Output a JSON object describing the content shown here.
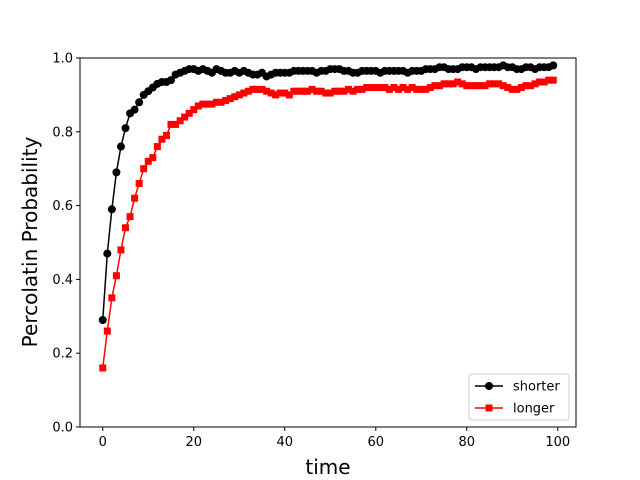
{
  "chart_data": {
    "type": "line",
    "xlabel": "time",
    "ylabel": "Percolatin Probability",
    "xlim": [
      -5,
      104
    ],
    "ylim": [
      0.0,
      1.0
    ],
    "xticks": [
      0,
      20,
      40,
      60,
      80,
      100
    ],
    "yticks": [
      0.0,
      0.2,
      0.4,
      0.6,
      0.8,
      1.0
    ],
    "xtick_labels": [
      "0",
      "20",
      "40",
      "60",
      "80",
      "100"
    ],
    "ytick_labels": [
      "0.0",
      "0.2",
      "0.4",
      "0.6",
      "0.8",
      "1.0"
    ],
    "grid": false,
    "legend_position": "lower-right",
    "series": [
      {
        "name": "shorter",
        "color": "#000000",
        "marker": "circle",
        "x": [
          0,
          1,
          2,
          3,
          4,
          5,
          6,
          7,
          8,
          9,
          10,
          11,
          12,
          13,
          14,
          15,
          16,
          17,
          18,
          19,
          20,
          21,
          22,
          23,
          24,
          25,
          26,
          27,
          28,
          29,
          30,
          31,
          32,
          33,
          34,
          35,
          36,
          37,
          38,
          39,
          40,
          41,
          42,
          43,
          44,
          45,
          46,
          47,
          48,
          49,
          50,
          51,
          52,
          53,
          54,
          55,
          56,
          57,
          58,
          59,
          60,
          61,
          62,
          63,
          64,
          65,
          66,
          67,
          68,
          69,
          70,
          71,
          72,
          73,
          74,
          75,
          76,
          77,
          78,
          79,
          80,
          81,
          82,
          83,
          84,
          85,
          86,
          87,
          88,
          89,
          90,
          91,
          92,
          93,
          94,
          95,
          96,
          97,
          98,
          99
        ],
        "values": [
          0.29,
          0.47,
          0.59,
          0.69,
          0.76,
          0.81,
          0.85,
          0.86,
          0.88,
          0.9,
          0.91,
          0.92,
          0.93,
          0.935,
          0.935,
          0.94,
          0.955,
          0.96,
          0.965,
          0.97,
          0.97,
          0.965,
          0.97,
          0.965,
          0.96,
          0.97,
          0.965,
          0.96,
          0.96,
          0.965,
          0.96,
          0.965,
          0.96,
          0.955,
          0.955,
          0.96,
          0.95,
          0.955,
          0.96,
          0.96,
          0.96,
          0.96,
          0.965,
          0.965,
          0.965,
          0.965,
          0.965,
          0.96,
          0.965,
          0.965,
          0.97,
          0.97,
          0.97,
          0.965,
          0.965,
          0.96,
          0.96,
          0.965,
          0.965,
          0.965,
          0.965,
          0.96,
          0.965,
          0.965,
          0.965,
          0.965,
          0.965,
          0.96,
          0.965,
          0.965,
          0.965,
          0.97,
          0.97,
          0.97,
          0.975,
          0.975,
          0.97,
          0.97,
          0.97,
          0.975,
          0.975,
          0.975,
          0.97,
          0.975,
          0.975,
          0.975,
          0.975,
          0.975,
          0.98,
          0.975,
          0.975,
          0.97,
          0.97,
          0.975,
          0.975,
          0.97,
          0.975,
          0.975,
          0.975,
          0.98
        ]
      },
      {
        "name": "longer",
        "color": "#ff0000",
        "marker": "square",
        "x": [
          0,
          1,
          2,
          3,
          4,
          5,
          6,
          7,
          8,
          9,
          10,
          11,
          12,
          13,
          14,
          15,
          16,
          17,
          18,
          19,
          20,
          21,
          22,
          23,
          24,
          25,
          26,
          27,
          28,
          29,
          30,
          31,
          32,
          33,
          34,
          35,
          36,
          37,
          38,
          39,
          40,
          41,
          42,
          43,
          44,
          45,
          46,
          47,
          48,
          49,
          50,
          51,
          52,
          53,
          54,
          55,
          56,
          57,
          58,
          59,
          60,
          61,
          62,
          63,
          64,
          65,
          66,
          67,
          68,
          69,
          70,
          71,
          72,
          73,
          74,
          75,
          76,
          77,
          78,
          79,
          80,
          81,
          82,
          83,
          84,
          85,
          86,
          87,
          88,
          89,
          90,
          91,
          92,
          93,
          94,
          95,
          96,
          97,
          98,
          99
        ],
        "values": [
          0.16,
          0.26,
          0.35,
          0.41,
          0.48,
          0.54,
          0.57,
          0.62,
          0.66,
          0.7,
          0.72,
          0.73,
          0.76,
          0.78,
          0.79,
          0.82,
          0.82,
          0.83,
          0.84,
          0.85,
          0.86,
          0.87,
          0.875,
          0.875,
          0.875,
          0.88,
          0.88,
          0.885,
          0.89,
          0.895,
          0.9,
          0.905,
          0.91,
          0.915,
          0.915,
          0.915,
          0.91,
          0.905,
          0.9,
          0.905,
          0.905,
          0.9,
          0.91,
          0.91,
          0.91,
          0.91,
          0.915,
          0.91,
          0.91,
          0.905,
          0.905,
          0.91,
          0.91,
          0.91,
          0.915,
          0.91,
          0.915,
          0.915,
          0.92,
          0.92,
          0.92,
          0.92,
          0.92,
          0.915,
          0.92,
          0.915,
          0.92,
          0.915,
          0.92,
          0.915,
          0.915,
          0.915,
          0.92,
          0.925,
          0.925,
          0.93,
          0.93,
          0.93,
          0.935,
          0.93,
          0.925,
          0.925,
          0.925,
          0.925,
          0.925,
          0.93,
          0.93,
          0.93,
          0.925,
          0.92,
          0.915,
          0.915,
          0.92,
          0.925,
          0.925,
          0.93,
          0.935,
          0.935,
          0.94,
          0.94
        ]
      }
    ]
  }
}
